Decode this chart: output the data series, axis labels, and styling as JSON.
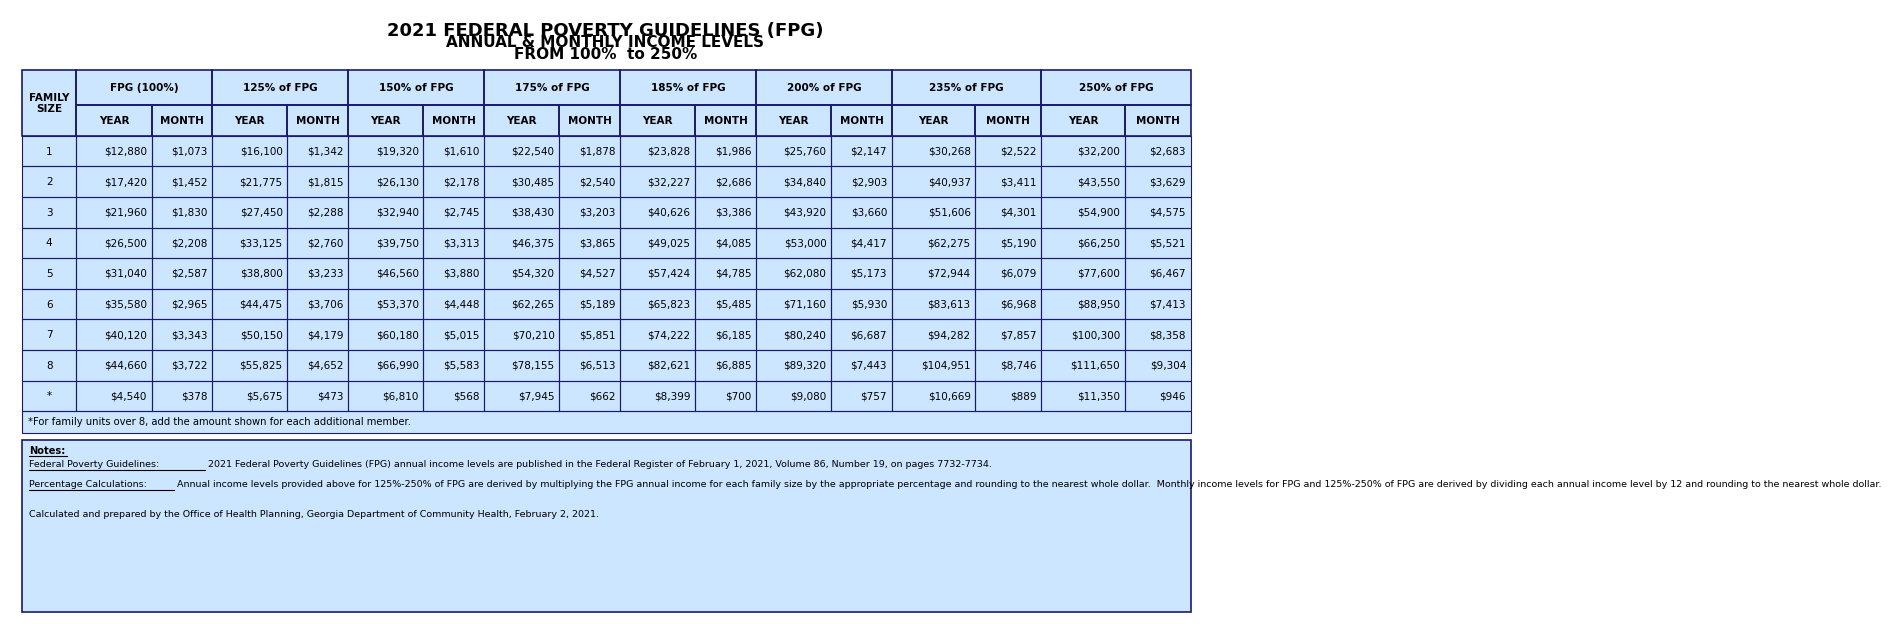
{
  "title_line1": "2021 FEDERAL POVERTY GUIDELINES (FPG)",
  "title_line2": "ANNUAL & MONTHLY INCOME LEVELS",
  "title_line3": "FROM 100%  to 250%",
  "bg_color": "#ffffff",
  "table_bg": "#cce6ff",
  "border_color": "#1a1a6e",
  "col_groups": [
    "FPG (100%)",
    "125% of FPG",
    "150% of FPG",
    "175% of FPG",
    "185% of FPG",
    "200% of FPG",
    "235% of FPG",
    "250% of FPG"
  ],
  "rows": [
    [
      "1",
      "$12,880",
      "$1,073",
      "$16,100",
      "$1,342",
      "$19,320",
      "$1,610",
      "$22,540",
      "$1,878",
      "$23,828",
      "$1,986",
      "$25,760",
      "$2,147",
      "$30,268",
      "$2,522",
      "$32,200",
      "$2,683"
    ],
    [
      "2",
      "$17,420",
      "$1,452",
      "$21,775",
      "$1,815",
      "$26,130",
      "$2,178",
      "$30,485",
      "$2,540",
      "$32,227",
      "$2,686",
      "$34,840",
      "$2,903",
      "$40,937",
      "$3,411",
      "$43,550",
      "$3,629"
    ],
    [
      "3",
      "$21,960",
      "$1,830",
      "$27,450",
      "$2,288",
      "$32,940",
      "$2,745",
      "$38,430",
      "$3,203",
      "$40,626",
      "$3,386",
      "$43,920",
      "$3,660",
      "$51,606",
      "$4,301",
      "$54,900",
      "$4,575"
    ],
    [
      "4",
      "$26,500",
      "$2,208",
      "$33,125",
      "$2,760",
      "$39,750",
      "$3,313",
      "$46,375",
      "$3,865",
      "$49,025",
      "$4,085",
      "$53,000",
      "$4,417",
      "$62,275",
      "$5,190",
      "$66,250",
      "$5,521"
    ],
    [
      "5",
      "$31,040",
      "$2,587",
      "$38,800",
      "$3,233",
      "$46,560",
      "$3,880",
      "$54,320",
      "$4,527",
      "$57,424",
      "$4,785",
      "$62,080",
      "$5,173",
      "$72,944",
      "$6,079",
      "$77,600",
      "$6,467"
    ],
    [
      "6",
      "$35,580",
      "$2,965",
      "$44,475",
      "$3,706",
      "$53,370",
      "$4,448",
      "$62,265",
      "$5,189",
      "$65,823",
      "$5,485",
      "$71,160",
      "$5,930",
      "$83,613",
      "$6,968",
      "$88,950",
      "$7,413"
    ],
    [
      "7",
      "$40,120",
      "$3,343",
      "$50,150",
      "$4,179",
      "$60,180",
      "$5,015",
      "$70,210",
      "$5,851",
      "$74,222",
      "$6,185",
      "$80,240",
      "$6,687",
      "$94,282",
      "$7,857",
      "$100,300",
      "$8,358"
    ],
    [
      "8",
      "$44,660",
      "$3,722",
      "$55,825",
      "$4,652",
      "$66,990",
      "$5,583",
      "$78,155",
      "$6,513",
      "$82,621",
      "$6,885",
      "$89,320",
      "$7,443",
      "$104,951",
      "$8,746",
      "$111,650",
      "$9,304"
    ],
    [
      "*",
      "$4,540",
      "$378",
      "$5,675",
      "$473",
      "$6,810",
      "$568",
      "$7,945",
      "$662",
      "$8,399",
      "$700",
      "$9,080",
      "$757",
      "$10,669",
      "$889",
      "$11,350",
      "$946"
    ]
  ],
  "footnote": "*For family units over 8, add the amount shown for each additional member.",
  "notes_title": "Notes:",
  "notes_prefix1": "Federal Poverty Guidelines:",
  "notes_rest1": " 2021 Federal Poverty Guidelines (FPG) annual income levels are published in the Federal Register of February 1, 2021, Volume 86, Number 19, on pages 7732-7734.",
  "notes_prefix2": "Percentage Calculations:",
  "notes_rest2": " Annual income levels provided above for 125%-250% of FPG are derived by multiplying the FPG annual income for each family size by the appropriate percentage and rounding to the nearest whole dollar.  Monthly income levels for FPG and 125%-250% of FPG are derived by dividing each annual income level by 12 and rounding to the nearest whole dollar.",
  "notes_line3": "Calculated and prepared by the Office of Health Planning, Georgia Department of Community Health, February 2, 2021."
}
